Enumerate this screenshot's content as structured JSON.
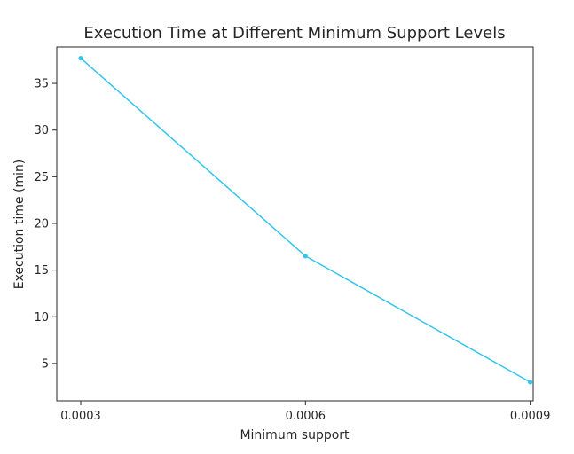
{
  "chart_data": {
    "type": "line",
    "title": "Execution Time at Different Minimum Support Levels",
    "xlabel": "Minimum support",
    "ylabel": "Execution time (min)",
    "x": [
      0.0003,
      0.0006,
      0.0009
    ],
    "x_tick_labels": [
      "0.0003",
      "0.0006",
      "0.0009"
    ],
    "y_ticks": [
      5,
      10,
      15,
      20,
      25,
      30,
      35
    ],
    "y_tick_labels": [
      "5",
      "10",
      "15",
      "20",
      "25",
      "30",
      "35"
    ],
    "xlim": [
      0.000268,
      0.000904
    ],
    "ylim": [
      1.0,
      38.9
    ],
    "grid": false,
    "series": [
      {
        "color": "#33c4ef",
        "values": [
          37.7,
          16.5,
          3.0
        ]
      }
    ]
  }
}
